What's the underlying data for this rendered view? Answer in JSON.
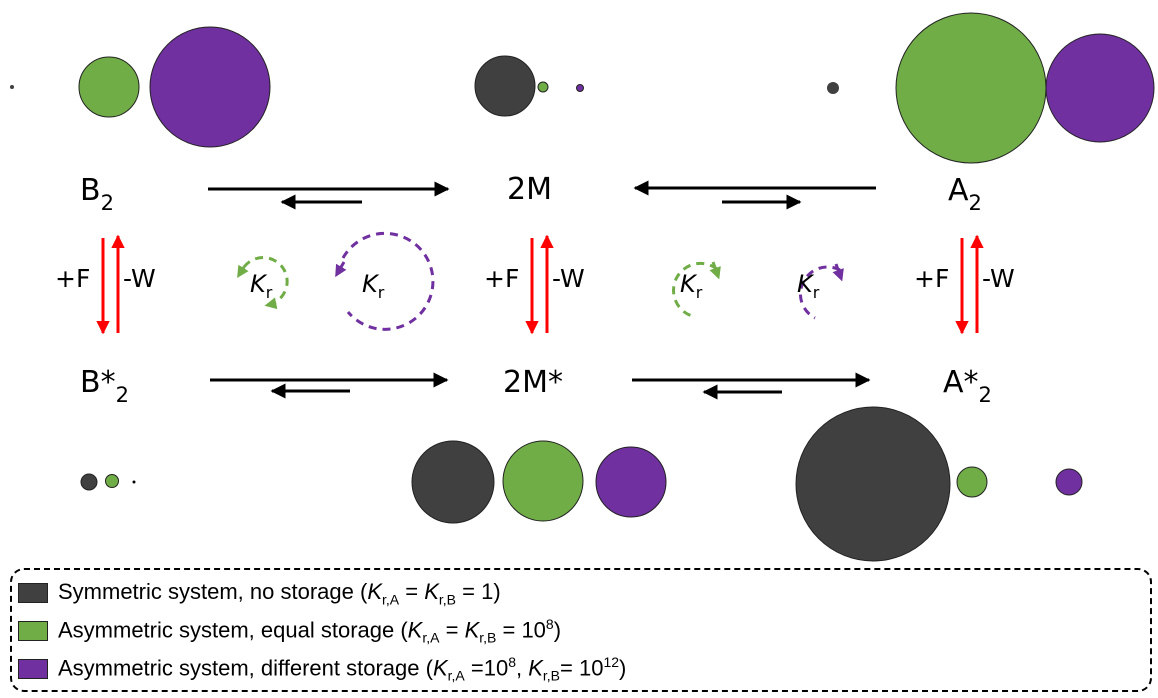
{
  "colors": {
    "symmetric": "#404040",
    "equal": "#70ad47",
    "different": "#7030a0",
    "arrow": "#000000",
    "energy_arrow": "#ff0000"
  },
  "species": {
    "B2": {
      "base": "B",
      "sub": "2"
    },
    "M2": {
      "text": "2M"
    },
    "A2": {
      "base": "A",
      "sub": "2"
    },
    "Bstar2": {
      "base": "B*",
      "sub": "2"
    },
    "Mstar2": {
      "text": "2M*"
    },
    "Astar2": {
      "base": "A*",
      "sub": "2"
    }
  },
  "energy": {
    "plus": "+F",
    "minus": "-W"
  },
  "kr": {
    "symbol": "K",
    "sub": "r"
  },
  "legend": [
    {
      "color": "#404040",
      "lead": "Symmetric system, no storage (",
      "k1": "K",
      "k1sub": "r,A",
      "mid": " = ",
      "k2": "K",
      "k2sub": "r,B",
      "tail": " = 1)",
      "sup1": "",
      "sup2": ""
    },
    {
      "color": "#70ad47",
      "lead": "Asymmetric system, equal storage (",
      "k1": "K",
      "k1sub": "r,A",
      "mid": " = ",
      "k2": "K",
      "k2sub": "r,B",
      "tail": " = 10",
      "sup1": "8",
      "end": ")"
    },
    {
      "color": "#7030a0",
      "lead": "Asymmetric system, different storage (",
      "k1": "K",
      "k1sub": "r,A",
      "mid": " =10",
      "midsup": "8",
      "mid2": ", ",
      "k2": "K",
      "k2sub": "r,B",
      "tail": "= 10",
      "sup1": "12",
      "end": ")"
    }
  ],
  "populations": {
    "B2": {
      "symmetric": 1e-05,
      "equal": 0.11,
      "different": 0.47
    },
    "M2": {
      "symmetric": 0.12,
      "equal": 0.008,
      "different": 0.0025
    },
    "A2": {
      "symmetric": 0.005,
      "equal": 0.98,
      "different": 0.53
    },
    "Bstar2": {
      "symmetric": 0.004,
      "equal": 0.003,
      "different": 1e-05
    },
    "Mstar2": {
      "symmetric": 0.2,
      "equal": 0.2,
      "different": 0.16
    },
    "Astar2": {
      "symmetric": 0.76,
      "equal": 0.004,
      "different": 0.003
    }
  }
}
